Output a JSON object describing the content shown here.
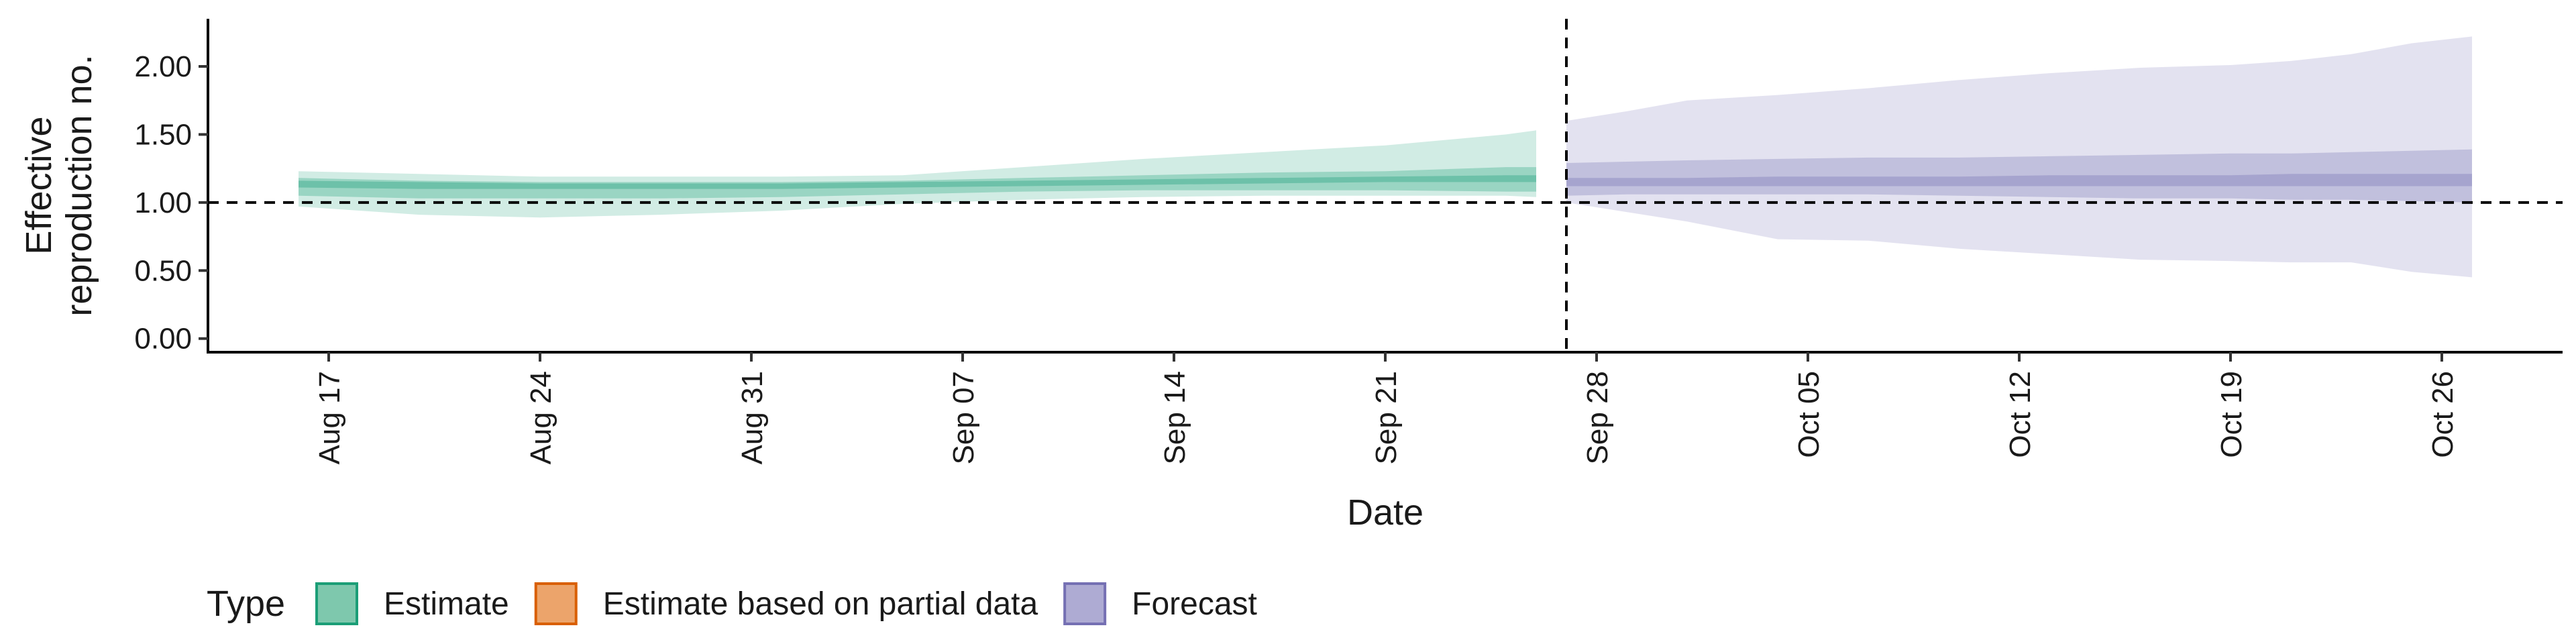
{
  "chart_data": {
    "type": "area",
    "xlabel": "Date",
    "ylabel_lines": [
      "Effective",
      "reproduction no."
    ],
    "x_range": [
      "2020-08-13",
      "2020-10-30"
    ],
    "ylim": [
      -0.1,
      2.35
    ],
    "y_ticks": [
      0.0,
      0.5,
      1.0,
      1.5,
      2.0
    ],
    "y_tick_labels": [
      "0.00",
      "0.50",
      "1.00",
      "1.50",
      "2.00"
    ],
    "x_ticks": [
      "2020-08-17",
      "2020-08-24",
      "2020-08-31",
      "2020-09-07",
      "2020-09-14",
      "2020-09-21",
      "2020-09-28",
      "2020-10-05",
      "2020-10-12",
      "2020-10-19",
      "2020-10-26"
    ],
    "x_tick_labels": [
      "Aug 17",
      "Aug 24",
      "Aug 31",
      "Sep 07",
      "Sep 14",
      "Sep 21",
      "Sep 28",
      "Oct 05",
      "Oct 12",
      "Oct 19",
      "Oct 26"
    ],
    "reference_hline": 1.0,
    "reference_vline": "2020-09-27",
    "grid": false,
    "legend": {
      "title": "Type",
      "position": "bottom-left",
      "items": [
        {
          "label": "Estimate",
          "fill": "#7ec8ad",
          "stroke": "#1b9e77"
        },
        {
          "label": "Estimate based on partial data",
          "fill": "#eca46b",
          "stroke": "#d95f02"
        },
        {
          "label": "Forecast",
          "fill": "#aeabd3",
          "stroke": "#7570b3"
        }
      ]
    },
    "series": [
      {
        "name": "Estimate",
        "color": "#1b9e77",
        "x": [
          "2020-08-16",
          "2020-08-20",
          "2020-08-24",
          "2020-08-28",
          "2020-09-01",
          "2020-09-05",
          "2020-09-09",
          "2020-09-13",
          "2020-09-17",
          "2020-09-21",
          "2020-09-25",
          "2020-09-26"
        ],
        "lower90": [
          0.97,
          0.91,
          0.89,
          0.91,
          0.94,
          0.99,
          1.02,
          1.04,
          1.05,
          1.05,
          1.05,
          1.04
        ],
        "upper90": [
          1.23,
          1.21,
          1.19,
          1.19,
          1.19,
          1.2,
          1.26,
          1.32,
          1.37,
          1.42,
          1.5,
          1.53
        ],
        "lower50": [
          1.05,
          1.03,
          1.03,
          1.03,
          1.04,
          1.06,
          1.08,
          1.09,
          1.09,
          1.09,
          1.08,
          1.08
        ],
        "upper50": [
          1.18,
          1.16,
          1.15,
          1.15,
          1.15,
          1.16,
          1.18,
          1.2,
          1.22,
          1.23,
          1.26,
          1.26
        ],
        "lower20": [
          1.11,
          1.1,
          1.1,
          1.1,
          1.1,
          1.11,
          1.12,
          1.13,
          1.14,
          1.15,
          1.15,
          1.15
        ],
        "upper20": [
          1.16,
          1.15,
          1.14,
          1.14,
          1.14,
          1.15,
          1.16,
          1.17,
          1.18,
          1.19,
          1.2,
          1.2
        ]
      },
      {
        "name": "Forecast",
        "color": "#7570b3",
        "x": [
          "2020-09-27",
          "2020-09-29",
          "2020-10-01",
          "2020-10-04",
          "2020-10-07",
          "2020-10-10",
          "2020-10-13",
          "2020-10-16",
          "2020-10-19",
          "2020-10-21",
          "2020-10-23",
          "2020-10-25",
          "2020-10-27"
        ],
        "lower90": [
          1.0,
          0.93,
          0.86,
          0.73,
          0.72,
          0.66,
          0.62,
          0.58,
          0.57,
          0.56,
          0.56,
          0.49,
          0.45
        ],
        "upper90": [
          1.6,
          1.67,
          1.75,
          1.79,
          1.84,
          1.9,
          1.95,
          1.99,
          2.01,
          2.04,
          2.09,
          2.17,
          2.22
        ],
        "lower50": [
          1.05,
          1.06,
          1.06,
          1.06,
          1.06,
          1.05,
          1.04,
          1.03,
          1.03,
          1.02,
          1.02,
          1.01,
          1.0
        ],
        "upper50": [
          1.29,
          1.3,
          1.31,
          1.32,
          1.33,
          1.33,
          1.34,
          1.35,
          1.36,
          1.36,
          1.37,
          1.38,
          1.39
        ],
        "lower20": [
          1.12,
          1.12,
          1.12,
          1.12,
          1.12,
          1.12,
          1.12,
          1.12,
          1.12,
          1.12,
          1.12,
          1.12,
          1.12
        ],
        "upper20": [
          1.18,
          1.18,
          1.18,
          1.19,
          1.19,
          1.19,
          1.2,
          1.2,
          1.2,
          1.21,
          1.21,
          1.21,
          1.21
        ]
      }
    ]
  }
}
